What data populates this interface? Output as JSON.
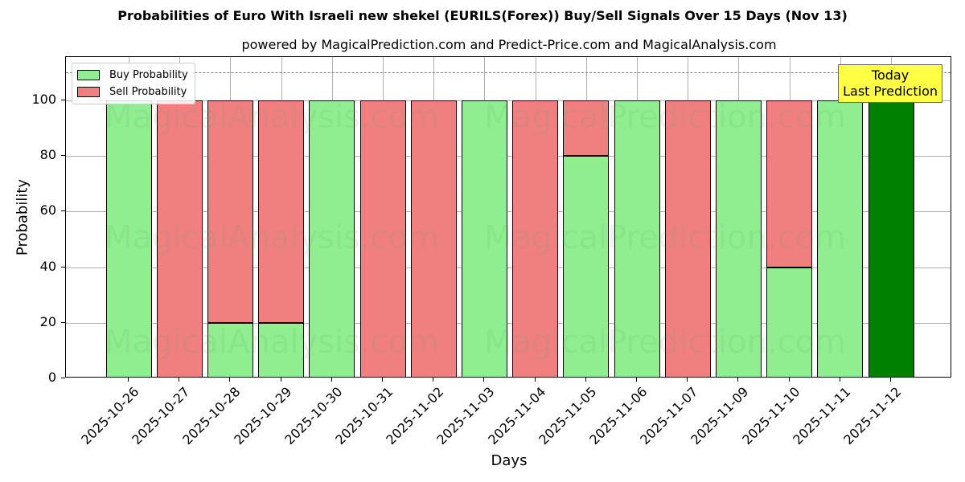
{
  "title": "Probabilities of Euro With Israeli new shekel (EURILS(Forex)) Buy/Sell Signals Over 15 Days (Nov 13)",
  "subtitle": "powered by MagicalPrediction.com and Predict-Price.com and MagicalAnalysis.com",
  "legend": {
    "buy_label": "Buy Probability",
    "sell_label": "Sell Probability"
  },
  "annotation": {
    "line1": "Today",
    "line2": "Last Prediction"
  },
  "watermarks": [
    "MagicalAnalysis.com",
    "MagicalPrediction.com"
  ],
  "colors": {
    "buy": "#90ee90",
    "sell": "#f08080",
    "today": "#008000",
    "annotation_bg": "#ffff44"
  },
  "axes": {
    "xlabel": "Days",
    "ylabel": "Probability",
    "yticks": [
      "0",
      "20",
      "40",
      "60",
      "80",
      "100"
    ]
  },
  "chart_data": {
    "type": "bar",
    "stacked": true,
    "title": "Probabilities of Euro With Israeli new shekel (EURILS(Forex)) Buy/Sell Signals Over 15 Days (Nov 13)",
    "subtitle": "powered by MagicalPrediction.com and Predict-Price.com and MagicalAnalysis.com",
    "xlabel": "Days",
    "ylabel": "Probability",
    "ylim": [
      0,
      115
    ],
    "yticks": [
      0,
      20,
      40,
      60,
      80,
      100
    ],
    "reference_line": {
      "y": 110,
      "style": "dashed",
      "color": "#808080"
    },
    "grid": true,
    "legend_position": "upper left",
    "categories": [
      "2025-10-26",
      "2025-10-27",
      "2025-10-28",
      "2025-10-29",
      "2025-10-30",
      "2025-10-31",
      "2025-11-02",
      "2025-11-03",
      "2025-11-04",
      "2025-11-05",
      "2025-11-06",
      "2025-11-07",
      "2025-11-09",
      "2025-11-10",
      "2025-11-11",
      "2025-11-12"
    ],
    "series": [
      {
        "name": "Buy Probability",
        "color": "#90ee90",
        "values": [
          100,
          0,
          20,
          20,
          100,
          0,
          0,
          100,
          0,
          80,
          100,
          0,
          100,
          40,
          100,
          100
        ]
      },
      {
        "name": "Sell Probability",
        "color": "#f08080",
        "values": [
          0,
          100,
          80,
          80,
          0,
          100,
          100,
          0,
          100,
          20,
          0,
          100,
          0,
          60,
          0,
          0
        ]
      }
    ],
    "highlight": {
      "category": "2025-11-12",
      "color": "#008000",
      "annotation": "Today\nLast Prediction"
    }
  }
}
